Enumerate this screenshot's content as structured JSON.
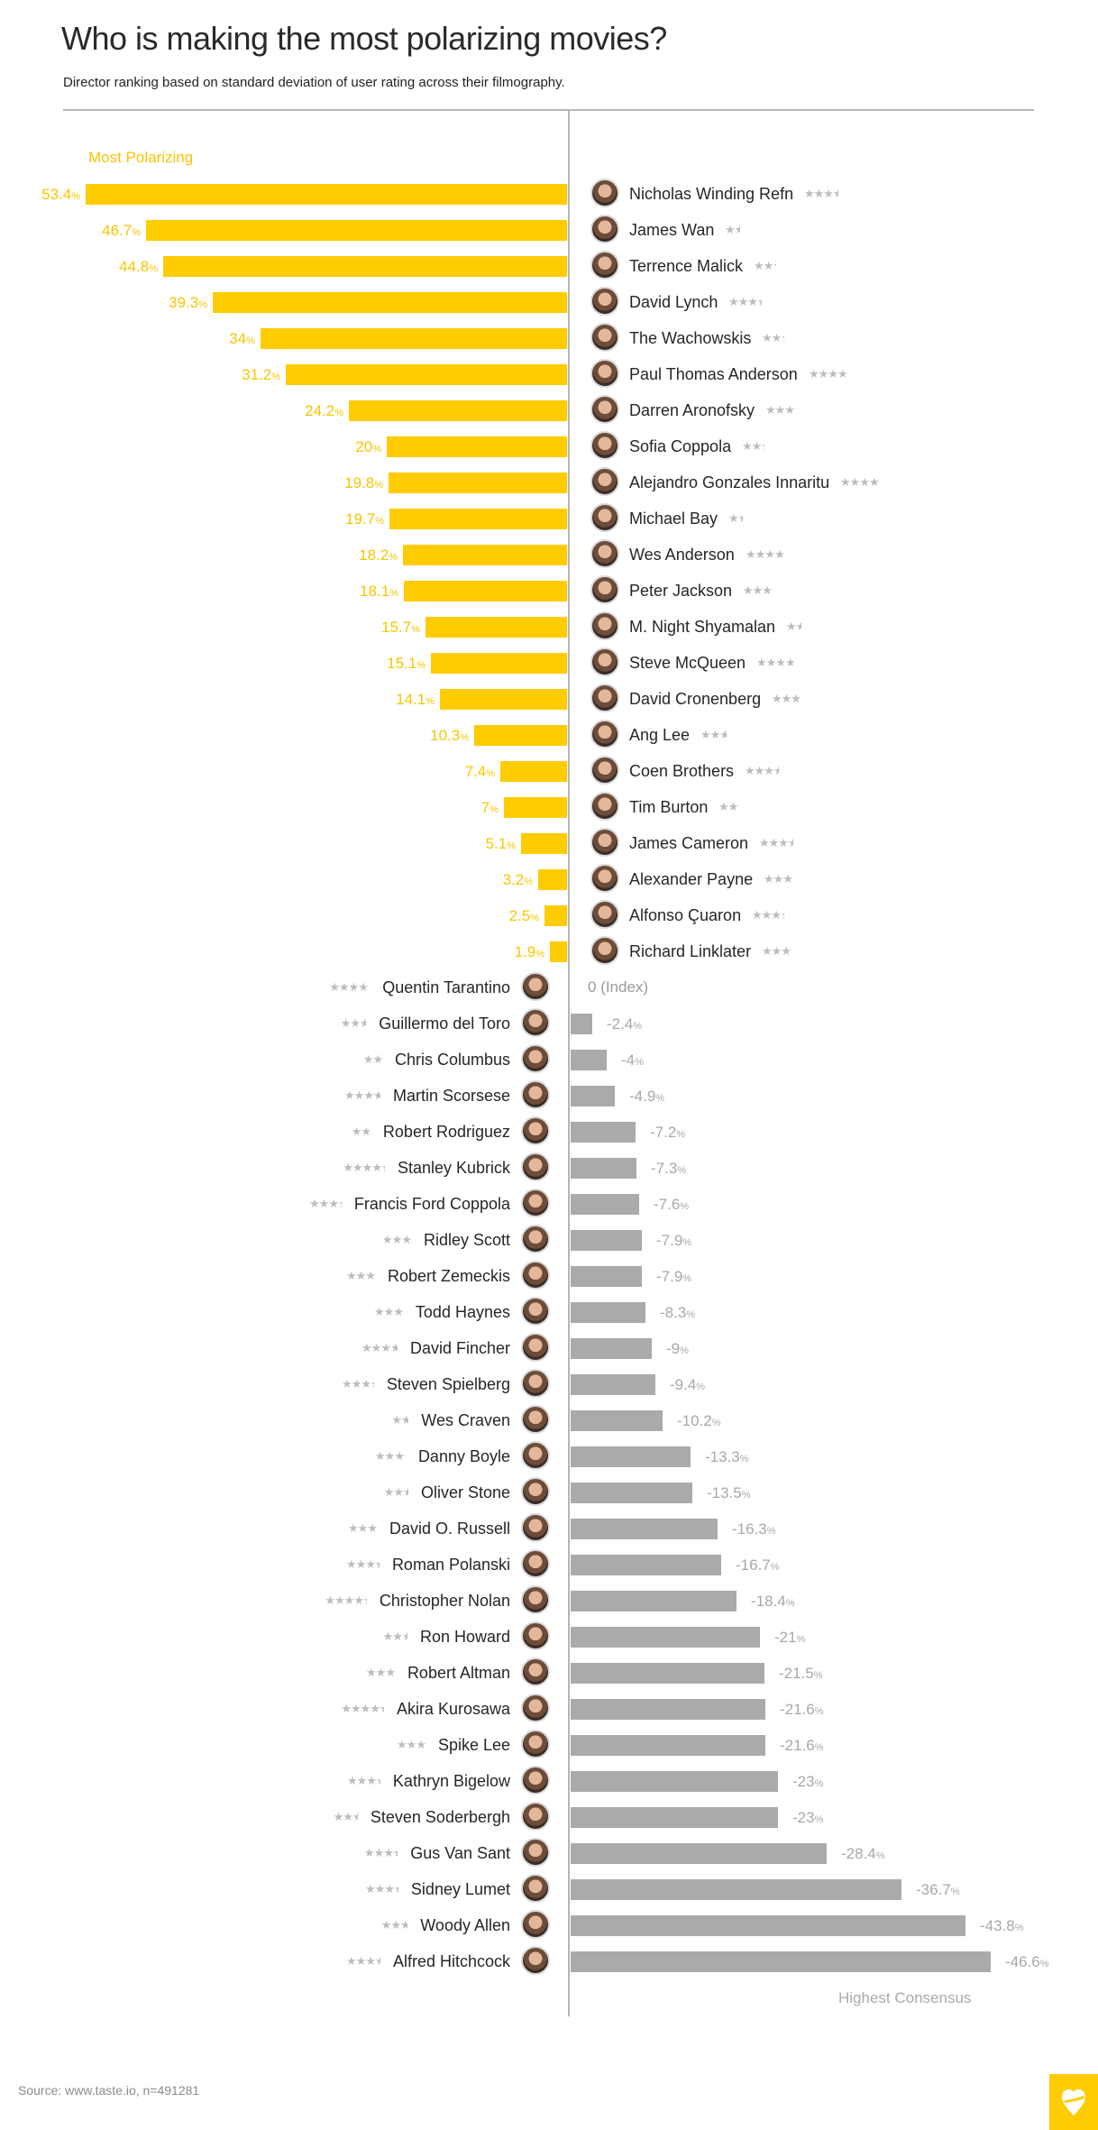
{
  "header": {
    "title": "Who is making the most polarizing movies?",
    "subtitle": "Director ranking based on standard deviation of user rating across their filmography."
  },
  "labels": {
    "most_polarizing": "Most Polarizing",
    "highest_consensus": "Highest Consensus",
    "index_label": "0 (Index)"
  },
  "footer": {
    "source": "Source: www.taste.io, n=491281",
    "logo_icon": "heart-logo-icon"
  },
  "colors": {
    "polarizing_bar": "#fecc00",
    "consensus_bar": "#aaaaaa",
    "axis": "#b5b5b5",
    "stars": "#bdbdbd"
  },
  "chart_data": {
    "type": "bar",
    "orientation": "horizontal-diverging",
    "title": "Who is making the most polarizing movies?",
    "subtitle": "Director ranking based on standard deviation of user rating across their filmography.",
    "xlabel": "",
    "ylabel": "",
    "unit": "%",
    "zero_label": "0 (Index)",
    "annotations": [
      "Most Polarizing",
      "Highest Consensus"
    ],
    "grid": false,
    "legend": null,
    "directors": [
      {
        "name": "Nicholas Winding Refn",
        "value": 53.4,
        "stars": 3.5
      },
      {
        "name": "James Wan",
        "value": 46.7,
        "stars": 1.5
      },
      {
        "name": "Terrence Malick",
        "value": 44.8,
        "stars": 2.3
      },
      {
        "name": "David Lynch",
        "value": 39.3,
        "stars": 3.4
      },
      {
        "name": "The Wachowskis",
        "value": 34,
        "stars": 2.3
      },
      {
        "name": "Paul Thomas Anderson",
        "value": 31.2,
        "stars": 4
      },
      {
        "name": "Darren Aronofsky",
        "value": 24.2,
        "stars": 3.2
      },
      {
        "name": "Sofia Coppola",
        "value": 20,
        "stars": 2.3
      },
      {
        "name": "Alejandro Gonzales Innaritu",
        "value": 19.8,
        "stars": 4
      },
      {
        "name": "Michael Bay",
        "value": 19.7,
        "stars": 1.4
      },
      {
        "name": "Wes Anderson",
        "value": 18.2,
        "stars": 4
      },
      {
        "name": "Peter Jackson",
        "value": 18.1,
        "stars": 3.2
      },
      {
        "name": "M. Night Shyamalan",
        "value": 15.7,
        "stars": 1.5
      },
      {
        "name": "Steve McQueen",
        "value": 15.1,
        "stars": 4
      },
      {
        "name": "David Cronenberg",
        "value": 14.1,
        "stars": 3
      },
      {
        "name": "Ang Lee",
        "value": 10.3,
        "stars": 2.7
      },
      {
        "name": "Coen Brothers",
        "value": 7.4,
        "stars": 3.5
      },
      {
        "name": "Tim Burton",
        "value": 7,
        "stars": 2.2
      },
      {
        "name": "James Cameron",
        "value": 5.1,
        "stars": 3.5
      },
      {
        "name": "Alexander Payne",
        "value": 3.2,
        "stars": 3
      },
      {
        "name": "Alfonso Çuaron",
        "value": 2.5,
        "stars": 3.3
      },
      {
        "name": "Richard Linklater",
        "value": 1.9,
        "stars": 3.2
      },
      {
        "name": "Quentin Tarantino",
        "value": 0,
        "stars": 4.2
      },
      {
        "name": "Guillermo del Toro",
        "value": -2.4,
        "stars": 2.6
      },
      {
        "name": "Chris Columbus",
        "value": -4,
        "stars": 2
      },
      {
        "name": "Martin Scorsese",
        "value": -4.9,
        "stars": 3.7
      },
      {
        "name": "Robert Rodriguez",
        "value": -7.2,
        "stars": 2
      },
      {
        "name": "Stanley Kubrick",
        "value": -7.3,
        "stars": 4.3
      },
      {
        "name": "Francis Ford Coppola",
        "value": -7.6,
        "stars": 3.3
      },
      {
        "name": "Ridley Scott",
        "value": -7.9,
        "stars": 3
      },
      {
        "name": "Robert Zemeckis",
        "value": -7.9,
        "stars": 3
      },
      {
        "name": "Todd Haynes",
        "value": -8.3,
        "stars": 3
      },
      {
        "name": "David Fincher",
        "value": -9,
        "stars": 3.7
      },
      {
        "name": "Steven Spielberg",
        "value": -9.4,
        "stars": 3.3
      },
      {
        "name": "Wes Craven",
        "value": -10.2,
        "stars": 1.7
      },
      {
        "name": "Danny Boyle",
        "value": -13.3,
        "stars": 3.2
      },
      {
        "name": "Oliver Stone",
        "value": -13.5,
        "stars": 2.5
      },
      {
        "name": "David O. Russell",
        "value": -16.3,
        "stars": 3
      },
      {
        "name": "Roman Polanski",
        "value": -16.7,
        "stars": 3.4
      },
      {
        "name": "Christopher Nolan",
        "value": -18.4,
        "stars": 4.3
      },
      {
        "name": "Ron Howard",
        "value": -21,
        "stars": 2.5
      },
      {
        "name": "Robert Altman",
        "value": -21.5,
        "stars": 3
      },
      {
        "name": "Akira Kurosawa",
        "value": -21.6,
        "stars": 4.4
      },
      {
        "name": "Spike Lee",
        "value": -21.6,
        "stars": 3
      },
      {
        "name": "Kathryn Bigelow",
        "value": -23,
        "stars": 3.4
      },
      {
        "name": "Steven Soderbergh",
        "value": -23,
        "stars": 2.5
      },
      {
        "name": "Gus Van Sant",
        "value": -28.4,
        "stars": 3.4
      },
      {
        "name": "Sidney Lumet",
        "value": -36.7,
        "stars": 3.4
      },
      {
        "name": "Woody Allen",
        "value": -43.8,
        "stars": 2.7
      },
      {
        "name": "Alfred Hitchcock",
        "value": -46.6,
        "stars": 3.5
      }
    ],
    "xlim": [
      -50,
      55
    ]
  }
}
